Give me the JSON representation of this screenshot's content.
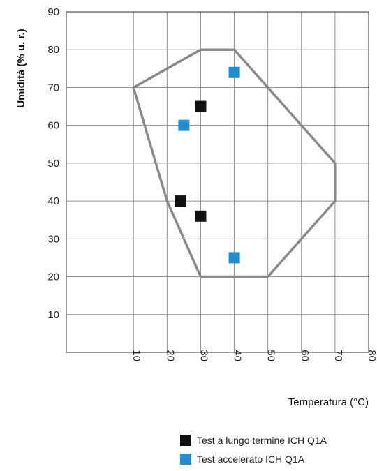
{
  "chart_data": {
    "type": "scatter",
    "xlabel": "Temperatura (°C)",
    "ylabel": "Umidità (% u. r.)",
    "xlim": [
      -10,
      80
    ],
    "ylim": [
      0,
      90
    ],
    "x_ticks": [
      10,
      20,
      30,
      40,
      50,
      60,
      70,
      80
    ],
    "y_ticks": [
      10,
      20,
      30,
      40,
      50,
      60,
      70,
      80,
      90
    ],
    "grid": true,
    "region_polygon": [
      [
        10,
        70
      ],
      [
        30,
        80
      ],
      [
        40,
        80
      ],
      [
        70,
        50
      ],
      [
        70,
        40
      ],
      [
        50,
        20
      ],
      [
        30,
        20
      ],
      [
        20,
        40
      ]
    ],
    "series": [
      {
        "name": "Test a lungo termine ICH Q1A",
        "color": "#111111",
        "points": [
          [
            30,
            65
          ],
          [
            24,
            40
          ],
          [
            30,
            36
          ]
        ]
      },
      {
        "name": "Test accelerato ICH Q1A",
        "color": "#1e8fd0",
        "points": [
          [
            25,
            60
          ],
          [
            40,
            74
          ],
          [
            40,
            25
          ]
        ]
      }
    ],
    "legend_position": "bottom-right"
  },
  "colors": {
    "grid": "#8f8f8f",
    "region": "#8a8a8a"
  }
}
